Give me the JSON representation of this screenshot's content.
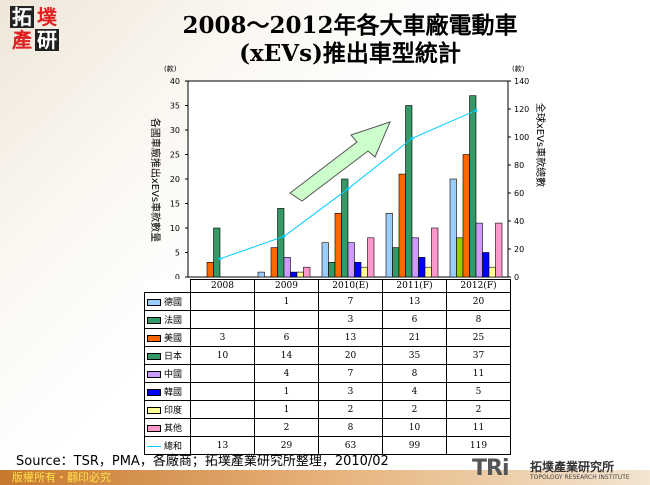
{
  "logo": {
    "chars": [
      "拓",
      "墣",
      "產",
      "研"
    ]
  },
  "title": {
    "line1": "2008～2012年各大車廠電動車",
    "line2": "(xEVs)推出車型統計"
  },
  "chart_data": {
    "type": "bar",
    "title": "2008～2012年各大車廠電動車(xEVs)推出車型統計",
    "categories": [
      "2008",
      "2009",
      "2010(E)",
      "2011(F)",
      "2012(F)"
    ],
    "ylabel": "各國車廠推出xEVs車款數量",
    "ylabel_right": "全球xEVs車款總數",
    "unit_left": "(款)",
    "unit_right": "(款)",
    "ylim": [
      0,
      40
    ],
    "ylim_right": [
      0,
      140
    ],
    "yticks": [
      "0",
      "5",
      "10",
      "15",
      "20",
      "25",
      "30",
      "35",
      "40"
    ],
    "yticks_right": [
      "0",
      "20",
      "40",
      "60",
      "80",
      "100",
      "120",
      "140"
    ],
    "grid": false,
    "legend": "table-below",
    "series": [
      {
        "name": "德國",
        "color": "#99ccff",
        "values": [
          null,
          1,
          7,
          13,
          20
        ]
      },
      {
        "name": "法國",
        "color": "#339966",
        "values": [
          null,
          null,
          3,
          6,
          8
        ]
      },
      {
        "name": "美國",
        "color": "#ff6600",
        "values": [
          3,
          6,
          13,
          21,
          25
        ]
      },
      {
        "name": "日本",
        "color": "#339966",
        "values": [
          10,
          14,
          20,
          35,
          37
        ]
      },
      {
        "name": "中國",
        "color": "#cc99ff",
        "values": [
          null,
          4,
          7,
          8,
          11
        ]
      },
      {
        "name": "韓國",
        "color": "#0000ff",
        "values": [
          null,
          1,
          3,
          4,
          5
        ]
      },
      {
        "name": "印度",
        "color": "#ffff99",
        "values": [
          null,
          1,
          2,
          2,
          2
        ]
      },
      {
        "name": "其他",
        "color": "#ff99cc",
        "values": [
          null,
          2,
          8,
          10,
          11
        ]
      },
      {
        "name": "總和",
        "color": "#00ccff",
        "type": "line",
        "axis": "right",
        "values": [
          13,
          29,
          63,
          99,
          119
        ]
      }
    ],
    "annotation": "upward-trend-arrow"
  },
  "source": "Source：TSR，PMA，各廠商；拓墣產業研究所整理，2010/02",
  "footer": {
    "copyright": "版權所有・翻印必究"
  },
  "brand": {
    "mark": "TRi",
    "name_cn": "拓墣產業研究所",
    "name_en": "TOPOLOGY RESEARCH INSTITUTE"
  }
}
